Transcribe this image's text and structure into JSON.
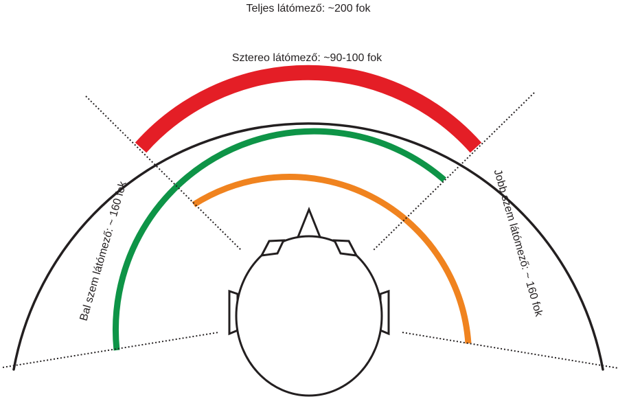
{
  "labels": {
    "total_field": "Teljes látómező: ~200 fok",
    "stereo_field": "Sztereo látómező: ~90-100 fok",
    "left_eye_field": "Bal szem látómező: ~ 160 fok",
    "right_eye_field": "Jobb szem látómező: ~ 160 fok"
  },
  "colors": {
    "outline": "#231f20",
    "stereo_arc": "#e41e26",
    "left_eye_arc": "#0e9447",
    "right_eye_arc": "#f0831f"
  }
}
